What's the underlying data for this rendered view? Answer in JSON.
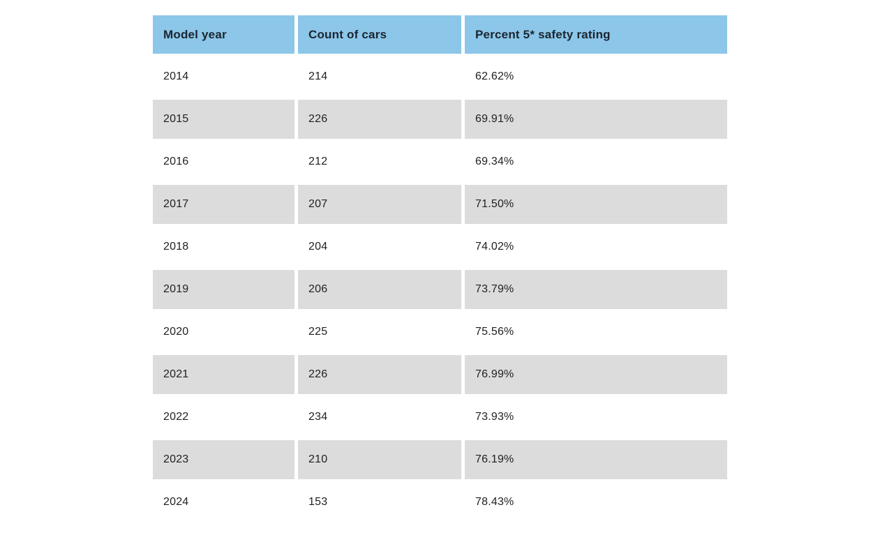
{
  "colors": {
    "header_bg": "#8cc6e8",
    "alt_row_bg": "#dcdcdc",
    "header_text": "#1b2531",
    "cell_text": "#1f1f1f",
    "page_bg": "#ffffff"
  },
  "table": {
    "columns": [
      {
        "label": "Model year"
      },
      {
        "label": "Count of cars"
      },
      {
        "label": "Percent 5* safety rating"
      }
    ],
    "rows": [
      {
        "year": "2014",
        "count": "214",
        "percent": "62.62%"
      },
      {
        "year": "2015",
        "count": "226",
        "percent": "69.91%"
      },
      {
        "year": "2016",
        "count": "212",
        "percent": "69.34%"
      },
      {
        "year": "2017",
        "count": "207",
        "percent": "71.50%"
      },
      {
        "year": "2018",
        "count": "204",
        "percent": "74.02%"
      },
      {
        "year": "2019",
        "count": "206",
        "percent": "73.79%"
      },
      {
        "year": "2020",
        "count": "225",
        "percent": "75.56%"
      },
      {
        "year": "2021",
        "count": "226",
        "percent": "76.99%"
      },
      {
        "year": "2022",
        "count": "234",
        "percent": "73.93%"
      },
      {
        "year": "2023",
        "count": "210",
        "percent": "76.19%"
      },
      {
        "year": "2024",
        "count": "153",
        "percent": "78.43%"
      }
    ]
  },
  "chart_data": {
    "type": "table",
    "title": "",
    "columns": [
      "Model year",
      "Count of cars",
      "Percent 5* safety rating"
    ],
    "categories": [
      "2014",
      "2015",
      "2016",
      "2017",
      "2018",
      "2019",
      "2020",
      "2021",
      "2022",
      "2023",
      "2024"
    ],
    "series": [
      {
        "name": "Count of cars",
        "values": [
          214,
          226,
          212,
          207,
          204,
          206,
          225,
          226,
          234,
          210,
          153
        ]
      },
      {
        "name": "Percent 5* safety rating",
        "values": [
          62.62,
          69.91,
          69.34,
          71.5,
          74.02,
          73.79,
          75.56,
          76.99,
          73.93,
          76.19,
          78.43
        ]
      }
    ],
    "layout_hints": {
      "striped_rows": true,
      "header_bg": "#8cc6e8",
      "alt_row_bg": "#dcdcdc"
    }
  }
}
